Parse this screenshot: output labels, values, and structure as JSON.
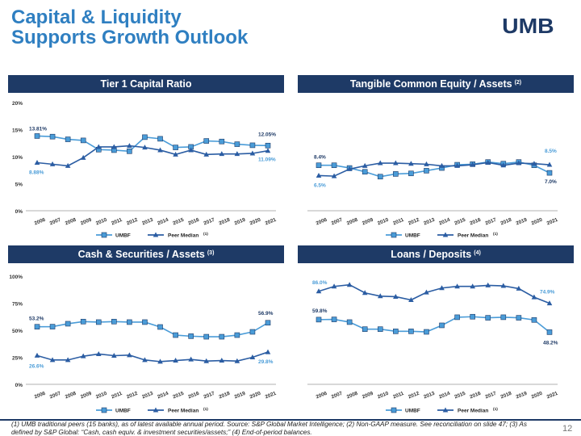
{
  "slide": {
    "title_line1": "Capital & Liquidity",
    "title_line2": "Supports Growth Outlook",
    "logo_text": "UMB",
    "page_number": "12",
    "footnote": "(1) UMB traditional peers (15 banks), as of latest available annual period. Source: S&P Global Market Intelligence; (2) Non-GAAP measure. See reconciliation on slide 47; (3) As defined by S&P Global: “Cash, cash equiv. & investment securities/assets;” (4) End-of-period balances.",
    "colors": {
      "navy": "#1e3a66",
      "umbf": "#4a9cd8",
      "peer": "#2b5da3",
      "title": "#2f7fc1"
    }
  },
  "chart_data": [
    {
      "type": "line",
      "title": "Tier 1 Capital Ratio",
      "title_sup": "",
      "x": [
        "2006",
        "2007",
        "2008",
        "2009",
        "2010",
        "2011",
        "2012",
        "2013",
        "2014",
        "2015",
        "2016",
        "2017",
        "2018",
        "2019",
        "2020",
        "2021"
      ],
      "y_ticks": [
        "0%",
        "5%",
        "10%",
        "15%",
        "20%"
      ],
      "ylim": [
        0,
        20
      ],
      "series": [
        {
          "name": "UMBF",
          "marker": "square",
          "values": [
            13.81,
            13.7,
            13.2,
            13.0,
            11.3,
            11.2,
            11.0,
            13.6,
            13.3,
            11.7,
            11.8,
            12.9,
            12.8,
            12.3,
            12.1,
            12.05
          ]
        },
        {
          "name": "Peer Median",
          "name_sup": "(1)",
          "marker": "triangle",
          "values": [
            8.88,
            8.6,
            8.3,
            9.8,
            11.8,
            11.8,
            12.0,
            11.7,
            11.2,
            10.4,
            11.2,
            10.4,
            10.5,
            10.5,
            10.6,
            11.09
          ]
        }
      ],
      "data_labels": [
        "13.81%",
        "12.05%",
        "8.88%",
        "11.09%"
      ],
      "legend": "bottom"
    },
    {
      "type": "line",
      "title": "Tangible Common Equity / Assets",
      "title_sup": "(2)",
      "x": [
        "2006",
        "2007",
        "2008",
        "2009",
        "2010",
        "2011",
        "2012",
        "2013",
        "2014",
        "2015",
        "2016",
        "2017",
        "2018",
        "2019",
        "2020",
        "2021"
      ],
      "y_ticks": [],
      "ylim": [
        0,
        20
      ],
      "series": [
        {
          "name": "UMBF",
          "marker": "square",
          "values": [
            8.4,
            8.4,
            7.9,
            7.2,
            6.3,
            6.8,
            6.9,
            7.4,
            7.9,
            8.5,
            8.6,
            9.0,
            8.7,
            9.0,
            8.4,
            7.0
          ]
        },
        {
          "name": "Peer Median",
          "name_sup": "(1)",
          "marker": "triangle",
          "values": [
            6.5,
            6.4,
            7.7,
            8.3,
            8.8,
            8.8,
            8.7,
            8.6,
            8.3,
            8.3,
            8.5,
            8.9,
            8.4,
            8.8,
            8.7,
            8.5
          ]
        }
      ],
      "data_labels": [
        "8.4%",
        "7.0%",
        "6.5%",
        "8.5%"
      ],
      "legend": "bottom"
    },
    {
      "type": "line",
      "title": "Cash & Securities / Assets",
      "title_sup": "(3)",
      "x": [
        "2006",
        "2007",
        "2008",
        "2009",
        "2010",
        "2011",
        "2012",
        "2013",
        "2014",
        "2015",
        "2016",
        "2017",
        "2018",
        "2019",
        "2020",
        "2021"
      ],
      "y_ticks": [
        "0%",
        "25%",
        "50%",
        "75%",
        "100%"
      ],
      "ylim": [
        0,
        100
      ],
      "series": [
        {
          "name": "UMBF",
          "marker": "square",
          "values": [
            53.2,
            53.3,
            56.0,
            58.0,
            57.5,
            58.0,
            57.5,
            57.5,
            53.0,
            45.5,
            44.5,
            44.0,
            44.0,
            45.5,
            48.5,
            56.9
          ]
        },
        {
          "name": "Peer Median",
          "name_sup": "(1)",
          "marker": "triangle",
          "values": [
            26.6,
            22.5,
            22.5,
            26.0,
            28.0,
            26.5,
            27.0,
            22.5,
            21.0,
            22.0,
            23.0,
            21.5,
            22.0,
            21.5,
            25.0,
            29.8
          ]
        }
      ],
      "data_labels": [
        "53.2%",
        "56.9%",
        "26.6%",
        "29.8%"
      ],
      "legend": "bottom"
    },
    {
      "type": "line",
      "title": "Loans / Deposits",
      "title_sup": "(4)",
      "x": [
        "2006",
        "2007",
        "2008",
        "2009",
        "2010",
        "2011",
        "2012",
        "2013",
        "2014",
        "2015",
        "2016",
        "2017",
        "2018",
        "2019",
        "2020",
        "2021"
      ],
      "y_ticks": [],
      "ylim": [
        0,
        100
      ],
      "series": [
        {
          "name": "UMBF",
          "marker": "square",
          "values": [
            59.8,
            60.0,
            57.5,
            51.0,
            51.0,
            49.0,
            49.0,
            48.5,
            54.5,
            62.0,
            62.5,
            61.5,
            62.0,
            61.5,
            59.5,
            48.2
          ]
        },
        {
          "name": "Peer Median",
          "name_sup": "(1)",
          "marker": "triangle",
          "values": [
            86.0,
            90.5,
            92.0,
            84.5,
            81.5,
            81.0,
            78.0,
            85.0,
            89.0,
            90.5,
            90.5,
            91.5,
            91.0,
            88.5,
            80.5,
            74.9
          ]
        }
      ],
      "data_labels": [
        "59.8%",
        "48.2%",
        "86.0%",
        "74.9%"
      ],
      "legend": "bottom"
    }
  ]
}
